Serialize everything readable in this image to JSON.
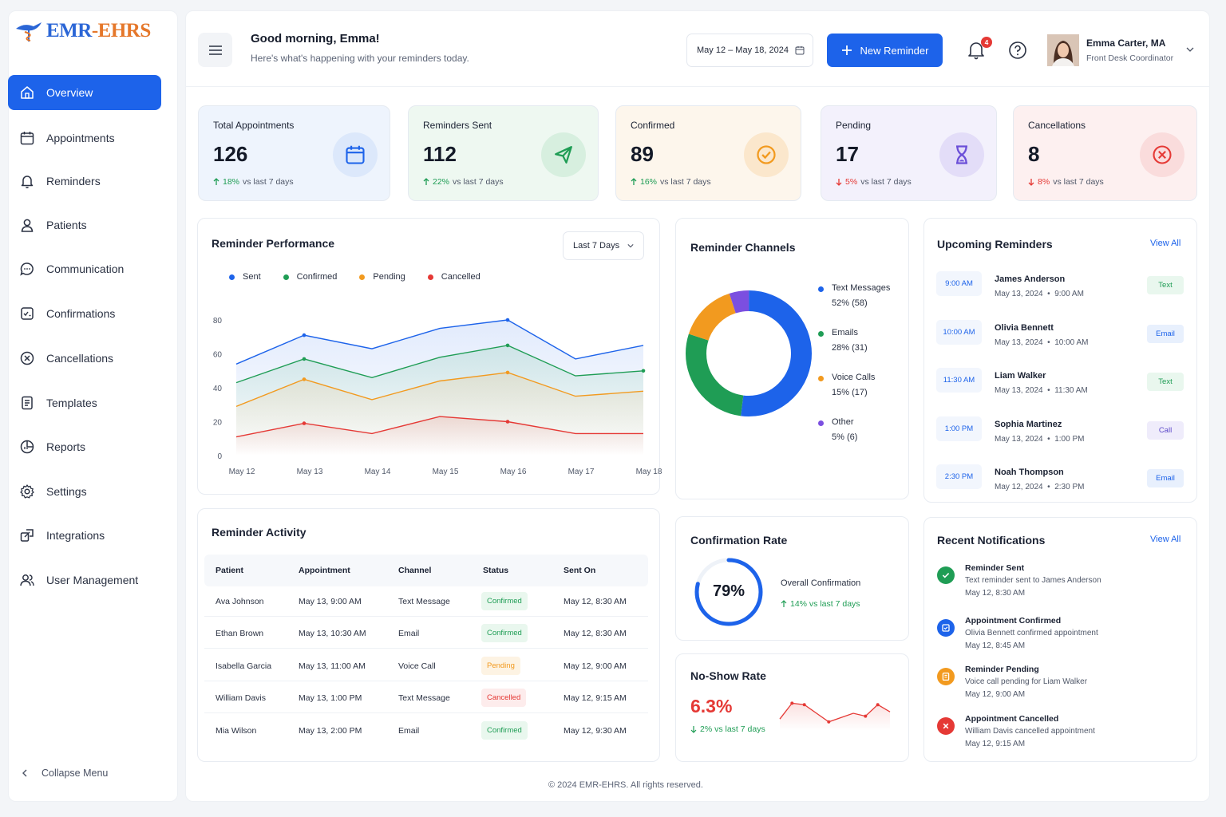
{
  "brand": {
    "logo_text_a": "EMR",
    "logo_text_sep": "-",
    "logo_text_b": "EHRS"
  },
  "sidebar": {
    "items": [
      {
        "label": "Overview",
        "icon": "home-icon"
      },
      {
        "label": "Appointments",
        "icon": "calendar-icon"
      },
      {
        "label": "Reminders",
        "icon": "bell-icon"
      },
      {
        "label": "Patients",
        "icon": "user-icon"
      },
      {
        "label": "Communication",
        "icon": "chat-icon"
      },
      {
        "label": "Confirmations",
        "icon": "checklist-icon"
      },
      {
        "label": "Cancellations",
        "icon": "x-circle-icon"
      },
      {
        "label": "Templates",
        "icon": "document-icon"
      },
      {
        "label": "Reports",
        "icon": "pie-chart-icon"
      },
      {
        "label": "Settings",
        "icon": "gear-icon"
      },
      {
        "label": "Integrations",
        "icon": "integration-icon"
      },
      {
        "label": "User Management",
        "icon": "users-icon"
      }
    ],
    "collapse_label": "Collapse Menu"
  },
  "header": {
    "greeting": "Good morning, Emma!",
    "subtitle": "Here's what's happening with your reminders today.",
    "date_range": "May 12 – May 18, 2024",
    "new_button": "New Reminder",
    "notification_count": "4",
    "user_name": "Emma Carter, MA",
    "user_role": "Front Desk Coordinator"
  },
  "stats": [
    {
      "label": "Total Appointments",
      "value": "126",
      "delta": "18%",
      "delta_text": "vs last 7 days",
      "direction": "up",
      "bg": "#eef4fd",
      "circle": "#dce8fb",
      "color": "#1d63ea",
      "icon": "calendar-icon"
    },
    {
      "label": "Reminders Sent",
      "value": "112",
      "delta": "22%",
      "delta_text": "vs last 7 days",
      "direction": "up",
      "bg": "#eef8f1",
      "circle": "#d7efdf",
      "color": "#1f9d55",
      "icon": "send-icon"
    },
    {
      "label": "Confirmed",
      "value": "89",
      "delta": "16%",
      "delta_text": "vs last 7 days",
      "direction": "up",
      "bg": "#fdf6ec",
      "circle": "#fbe7cc",
      "color": "#f29a1f",
      "icon": "check-circle-icon"
    },
    {
      "label": "Pending",
      "value": "17",
      "delta": "5%",
      "delta_text": "vs last 7 days",
      "direction": "down",
      "bg": "#f3f1fc",
      "circle": "#e3ddf8",
      "color": "#6b4fd8",
      "icon": "hourglass-icon"
    },
    {
      "label": "Cancellations",
      "value": "8",
      "delta": "8%",
      "delta_text": "vs last 7 days",
      "direction": "down",
      "bg": "#fdf0f0",
      "circle": "#fadcdc",
      "color": "#e53935",
      "icon": "x-circle-icon"
    }
  ],
  "performance": {
    "title": "Reminder Performance",
    "range_label": "Last 7 Days"
  },
  "chart_data": {
    "type": "line",
    "x": [
      "May 12",
      "May 13",
      "May 14",
      "May 15",
      "May 16",
      "May 17",
      "May 18"
    ],
    "ylim": [
      0,
      80
    ],
    "yticks": [
      "0",
      "20",
      "40",
      "60",
      "80"
    ],
    "series": [
      {
        "name": "Sent",
        "color": "#1d63ea",
        "values": [
          54,
          71,
          63,
          75,
          80,
          57,
          65
        ]
      },
      {
        "name": "Confirmed",
        "color": "#1f9d55",
        "values": [
          43,
          57,
          46,
          58,
          65,
          47,
          50
        ]
      },
      {
        "name": "Pending",
        "color": "#f29a1f",
        "values": [
          29,
          45,
          33,
          44,
          49,
          35,
          38
        ]
      },
      {
        "name": "Cancelled",
        "color": "#e53935",
        "values": [
          11,
          19,
          13,
          23,
          20,
          13,
          13
        ]
      }
    ]
  },
  "channels": {
    "title": "Reminder Channels",
    "items": [
      {
        "name": "Text Messages",
        "value": "52% (58)",
        "pct": 52,
        "color": "#1d63ea"
      },
      {
        "name": "Emails",
        "value": "28% (31)",
        "pct": 28,
        "color": "#1f9d55"
      },
      {
        "name": "Voice Calls",
        "value": "15% (17)",
        "pct": 15,
        "color": "#f29a1f"
      },
      {
        "name": "Other",
        "value": "5% (6)",
        "pct": 5,
        "color": "#7b4fe0"
      }
    ]
  },
  "upcoming": {
    "title": "Upcoming Reminders",
    "view_all": "View All",
    "items": [
      {
        "time": "9:00 AM",
        "name": "James Anderson",
        "when": "May 13, 2024  •  9:00 AM",
        "channel": "Text",
        "kind": "text"
      },
      {
        "time": "10:00 AM",
        "name": "Olivia Bennett",
        "when": "May 13, 2024  •  10:00 AM",
        "channel": "Email",
        "kind": "email"
      },
      {
        "time": "11:30 AM",
        "name": "Liam Walker",
        "when": "May 13, 2024  •  11:30 AM",
        "channel": "Text",
        "kind": "text"
      },
      {
        "time": "1:00 PM",
        "name": "Sophia Martinez",
        "when": "May 13, 2024  •  1:00 PM",
        "channel": "Call",
        "kind": "call"
      },
      {
        "time": "2:30 PM",
        "name": "Noah Thompson",
        "when": "May 12, 2024  •  2:30 PM",
        "channel": "Email",
        "kind": "email"
      }
    ]
  },
  "activity": {
    "title": "Reminder Activity",
    "columns": [
      "Patient",
      "Appointment",
      "Channel",
      "Status",
      "Sent On"
    ],
    "rows": [
      {
        "patient": "Ava Johnson",
        "appointment": "May 13, 9:00 AM",
        "channel": "Text Message",
        "status": "Confirmed",
        "sent": "May 12, 8:30 AM"
      },
      {
        "patient": "Ethan Brown",
        "appointment": "May 13, 10:30 AM",
        "channel": "Email",
        "status": "Confirmed",
        "sent": "May 12, 8:30 AM"
      },
      {
        "patient": "Isabella Garcia",
        "appointment": "May 13, 11:00 AM",
        "channel": "Voice Call",
        "status": "Pending",
        "sent": "May 12, 9:00 AM"
      },
      {
        "patient": "William Davis",
        "appointment": "May 13, 1:00 PM",
        "channel": "Text Message",
        "status": "Cancelled",
        "sent": "May 12, 9:15 AM"
      },
      {
        "patient": "Mia Wilson",
        "appointment": "May 13, 2:00 PM",
        "channel": "Email",
        "status": "Confirmed",
        "sent": "May 12, 9:30 AM"
      }
    ]
  },
  "confirmation": {
    "title": "Confirmation Rate",
    "value": "79%",
    "pct": 79,
    "label": "Overall Confirmation",
    "delta": "14% vs last 7 days"
  },
  "noshow": {
    "title": "No-Show Rate",
    "value": "6.3%",
    "delta": "2% vs last 7 days",
    "sparkline": [
      5.8,
      6.9,
      6.8,
      6.2,
      5.6,
      5.9,
      6.2,
      6.0,
      6.8,
      6.3
    ]
  },
  "notifications": {
    "title": "Recent Notifications",
    "view_all": "View All",
    "items": [
      {
        "title": "Reminder Sent",
        "text": "Text reminder sent to James Anderson",
        "time": "May 12, 8:30 AM",
        "color": "#1f9d55",
        "icon": "check-icon"
      },
      {
        "title": "Appointment Confirmed",
        "text": "Olivia Bennett confirmed appointment",
        "time": "May 12, 8:45 AM",
        "color": "#1d63ea",
        "icon": "calendar-check-icon"
      },
      {
        "title": "Reminder Pending",
        "text": "Voice call pending for Liam Walker",
        "time": "May 12, 9:00 AM",
        "color": "#f29a1f",
        "icon": "clipboard-icon"
      },
      {
        "title": "Appointment Cancelled",
        "text": "William Davis cancelled appointment",
        "time": "May 12, 9:15 AM",
        "color": "#e53935",
        "icon": "close-icon"
      }
    ]
  },
  "footer": "© 2024 EMR-EHRS. All rights reserved."
}
